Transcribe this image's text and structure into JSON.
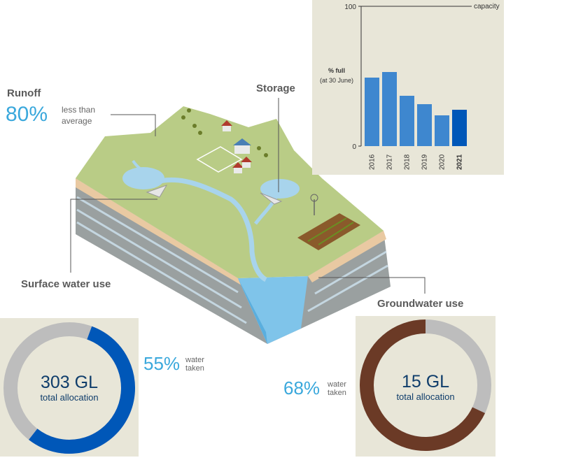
{
  "runoff": {
    "heading": "Runoff",
    "percent": "80%",
    "text_line1": "less than",
    "text_line2": "average"
  },
  "storage": {
    "heading": "Storage"
  },
  "surface_water": {
    "heading": "Surface water use",
    "percent": "55%",
    "text_line1": "water",
    "text_line2": "taken",
    "donut_value": "303 GL",
    "donut_label": "total allocation",
    "fraction_taken": 0.55,
    "color_taken": "#0057b8",
    "color_rest": "#bdbdbd"
  },
  "groundwater": {
    "heading": "Groundwater use",
    "percent": "68%",
    "text_line1": "water",
    "text_line2": "taken",
    "donut_value": "15 GL",
    "donut_label": "total allocation",
    "fraction_taken": 0.68,
    "color_taken": "#6b3a26",
    "color_rest": "#bdbdbd"
  },
  "chart_data": [
    {
      "type": "bar",
      "ylabel_line1": "% full",
      "ylabel_line2": "(at 30 June)",
      "ylim": [
        0,
        100
      ],
      "yticks": [
        "0",
        "100"
      ],
      "reference_line": {
        "value": 100,
        "label": "capacity"
      },
      "categories": [
        "2016",
        "2017",
        "2018",
        "2019",
        "2020",
        "2021"
      ],
      "values": [
        49,
        53,
        36,
        30,
        22,
        26
      ],
      "highlight": "2021",
      "bar_color": "#3e87cf",
      "highlight_color": "#0057b8",
      "grid": false
    },
    {
      "type": "pie",
      "title": "303 GL",
      "subtitle": "total allocation",
      "slices": [
        {
          "label": "water taken",
          "value": 55
        },
        {
          "label": "not taken",
          "value": 45
        }
      ]
    },
    {
      "type": "pie",
      "title": "15 GL",
      "subtitle": "total allocation",
      "slices": [
        {
          "label": "water taken",
          "value": 68
        },
        {
          "label": "not taken",
          "value": 32
        }
      ]
    }
  ]
}
